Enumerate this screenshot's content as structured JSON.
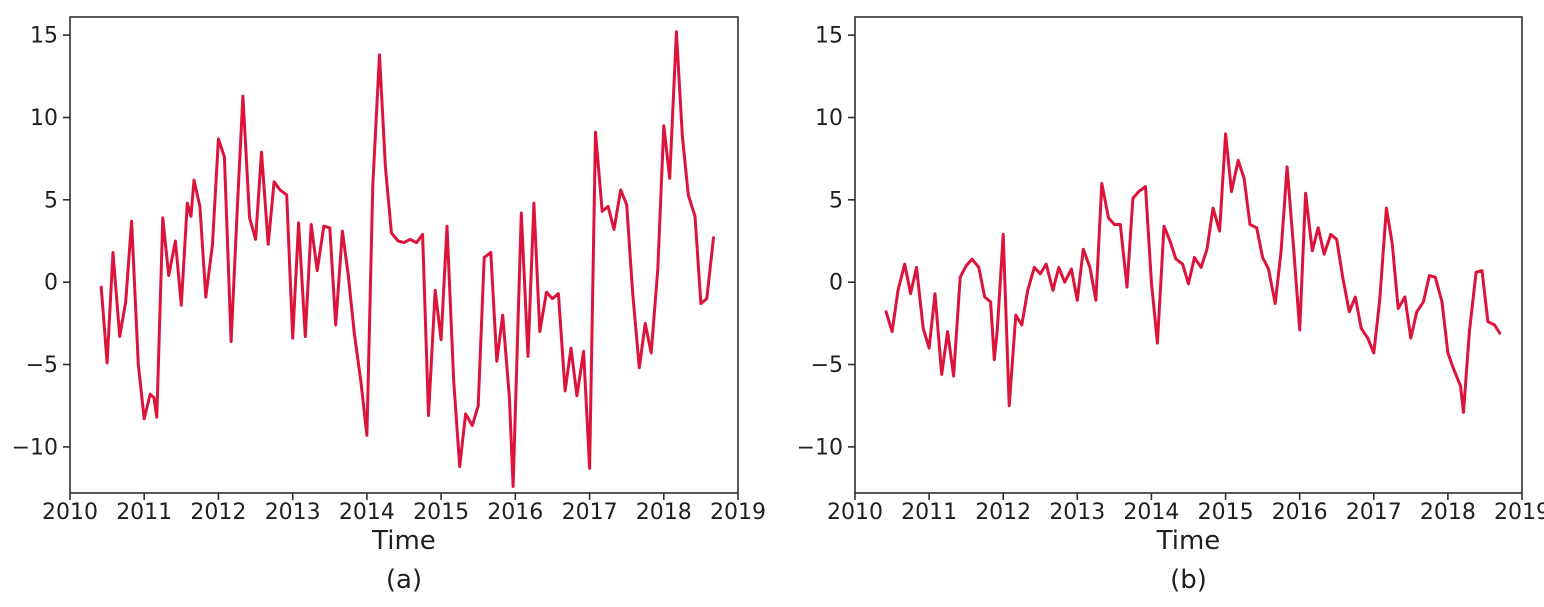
{
  "figure": {
    "background": "#ffffff",
    "text_color": "#1f1f1f",
    "spine_color": "#2e2e2e"
  },
  "chart_data": [
    {
      "type": "line",
      "caption": "(a)",
      "xlabel": "Time",
      "grid": false,
      "legend": "none",
      "xlim": [
        2010,
        2019
      ],
      "ylim": [
        -12.8,
        16.1
      ],
      "xticks": [
        2010,
        2011,
        2012,
        2013,
        2014,
        2015,
        2016,
        2017,
        2018,
        2019
      ],
      "yticks": [
        15,
        10,
        5,
        0,
        -5,
        -10
      ],
      "series": [
        {
          "name": "panel-a-line",
          "color": "#dc143c",
          "x": [
            2010.42,
            2010.5,
            2010.58,
            2010.67,
            2010.75,
            2010.83,
            2010.92,
            2011.0,
            2011.08,
            2011.13,
            2011.17,
            2011.25,
            2011.33,
            2011.42,
            2011.5,
            2011.58,
            2011.63,
            2011.67,
            2011.75,
            2011.83,
            2011.92,
            2012.0,
            2012.08,
            2012.17,
            2012.25,
            2012.33,
            2012.42,
            2012.5,
            2012.58,
            2012.67,
            2012.75,
            2012.83,
            2012.92,
            2013.0,
            2013.08,
            2013.17,
            2013.25,
            2013.33,
            2013.42,
            2013.5,
            2013.58,
            2013.67,
            2013.75,
            2013.83,
            2013.92,
            2014.0,
            2014.08,
            2014.17,
            2014.25,
            2014.33,
            2014.42,
            2014.5,
            2014.58,
            2014.67,
            2014.75,
            2014.83,
            2014.92,
            2015.0,
            2015.08,
            2015.17,
            2015.25,
            2015.33,
            2015.42,
            2015.5,
            2015.58,
            2015.67,
            2015.75,
            2015.83,
            2015.92,
            2015.97,
            2016.08,
            2016.17,
            2016.25,
            2016.33,
            2016.42,
            2016.5,
            2016.58,
            2016.67,
            2016.75,
            2016.83,
            2016.92,
            2017.0,
            2017.08,
            2017.17,
            2017.25,
            2017.33,
            2017.42,
            2017.5,
            2017.58,
            2017.67,
            2017.75,
            2017.83,
            2017.92,
            2018.0,
            2018.08,
            2018.17,
            2018.25,
            2018.33,
            2018.42,
            2018.5,
            2018.58,
            2018.67
          ],
          "y": [
            -0.3,
            -4.9,
            1.8,
            -3.3,
            -1.2,
            3.7,
            -5.0,
            -8.3,
            -6.8,
            -7.0,
            -8.2,
            3.9,
            0.4,
            2.5,
            -1.4,
            4.8,
            4.0,
            6.2,
            4.6,
            -0.9,
            2.3,
            8.7,
            7.6,
            -3.6,
            4.1,
            11.3,
            3.9,
            2.6,
            7.9,
            2.3,
            6.1,
            5.6,
            5.3,
            -3.4,
            3.6,
            -3.3,
            3.5,
            0.7,
            3.4,
            3.3,
            -2.6,
            3.1,
            0.4,
            -3.1,
            -6.1,
            -9.3,
            5.9,
            13.8,
            7.0,
            3.0,
            2.5,
            2.4,
            2.6,
            2.4,
            2.9,
            -8.1,
            -0.5,
            -3.5,
            3.4,
            -6.0,
            -11.2,
            -8.0,
            -8.7,
            -7.5,
            1.5,
            1.8,
            -4.8,
            -2.0,
            -7.0,
            -12.4,
            4.2,
            -4.5,
            4.8,
            -3.0,
            -0.6,
            -1.0,
            -0.7,
            -6.6,
            -4.0,
            -6.9,
            -4.2,
            -11.3,
            9.1,
            4.3,
            4.6,
            3.2,
            5.6,
            4.7,
            -0.6,
            -5.2,
            -2.5,
            -4.3,
            0.8,
            9.5,
            6.3,
            15.2,
            8.9,
            5.3,
            4.0,
            -1.3,
            -1.0,
            2.7
          ]
        }
      ]
    },
    {
      "type": "line",
      "caption": "(b)",
      "xlabel": "Time",
      "grid": false,
      "legend": "none",
      "xlim": [
        2010,
        2019
      ],
      "ylim": [
        -12.8,
        16.1
      ],
      "xticks": [
        2010,
        2011,
        2012,
        2013,
        2014,
        2015,
        2016,
        2017,
        2018,
        2019
      ],
      "yticks": [
        15,
        10,
        5,
        0,
        -5,
        -10
      ],
      "series": [
        {
          "name": "panel-b-line",
          "color": "#dc143c",
          "x": [
            2010.42,
            2010.5,
            2010.58,
            2010.67,
            2010.75,
            2010.83,
            2010.92,
            2011.0,
            2011.08,
            2011.17,
            2011.25,
            2011.33,
            2011.42,
            2011.5,
            2011.58,
            2011.67,
            2011.75,
            2011.83,
            2011.88,
            2011.92,
            2012.0,
            2012.08,
            2012.17,
            2012.25,
            2012.33,
            2012.42,
            2012.5,
            2012.58,
            2012.67,
            2012.75,
            2012.83,
            2012.92,
            2013.0,
            2013.08,
            2013.17,
            2013.25,
            2013.33,
            2013.42,
            2013.5,
            2013.58,
            2013.67,
            2013.75,
            2013.83,
            2013.92,
            2014.0,
            2014.08,
            2014.17,
            2014.25,
            2014.33,
            2014.42,
            2014.5,
            2014.58,
            2014.67,
            2014.75,
            2014.83,
            2014.92,
            2015.0,
            2015.08,
            2015.17,
            2015.25,
            2015.33,
            2015.42,
            2015.5,
            2015.58,
            2015.67,
            2015.75,
            2015.83,
            2015.92,
            2016.0,
            2016.08,
            2016.17,
            2016.25,
            2016.33,
            2016.42,
            2016.5,
            2016.58,
            2016.67,
            2016.75,
            2016.83,
            2016.92,
            2017.0,
            2017.08,
            2017.17,
            2017.25,
            2017.33,
            2017.42,
            2017.5,
            2017.58,
            2017.67,
            2017.75,
            2017.83,
            2017.92,
            2018.0,
            2018.08,
            2018.17,
            2018.21,
            2018.29,
            2018.38,
            2018.46,
            2018.54,
            2018.63,
            2018.7
          ],
          "y": [
            -1.8,
            -3.0,
            -0.5,
            1.1,
            -0.7,
            0.9,
            -2.8,
            -4.0,
            -0.7,
            -5.6,
            -3.0,
            -5.7,
            0.3,
            1.0,
            1.4,
            0.9,
            -0.9,
            -1.2,
            -4.7,
            -2.9,
            2.9,
            -7.5,
            -2.0,
            -2.6,
            -0.5,
            0.9,
            0.5,
            1.1,
            -0.5,
            0.9,
            0.0,
            0.8,
            -1.1,
            2.0,
            0.9,
            -1.1,
            6.0,
            3.9,
            3.5,
            3.5,
            -0.3,
            5.1,
            5.5,
            5.8,
            0.0,
            -3.7,
            3.4,
            2.5,
            1.4,
            1.1,
            -0.1,
            1.5,
            0.9,
            2.0,
            4.5,
            3.1,
            9.0,
            5.5,
            7.4,
            6.3,
            3.5,
            3.3,
            1.5,
            0.8,
            -1.3,
            1.9,
            7.0,
            2.0,
            -2.9,
            5.4,
            1.9,
            3.3,
            1.7,
            2.9,
            2.6,
            0.3,
            -1.8,
            -0.9,
            -2.8,
            -3.4,
            -4.3,
            -1.1,
            4.5,
            2.3,
            -1.6,
            -0.9,
            -3.4,
            -1.8,
            -1.2,
            0.4,
            0.3,
            -1.2,
            -4.3,
            -5.3,
            -6.3,
            -7.9,
            -3.0,
            0.6,
            0.7,
            -2.4,
            -2.6,
            -3.1
          ]
        }
      ]
    }
  ]
}
